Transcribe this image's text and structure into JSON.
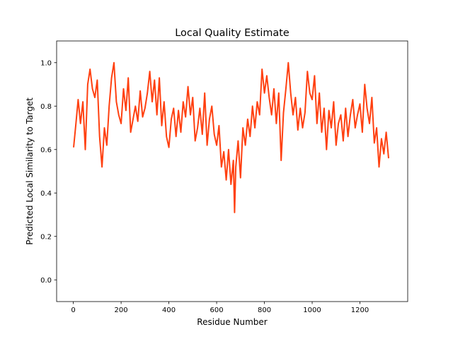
{
  "chart_data": {
    "type": "line",
    "title": "Local Quality Estimate",
    "xlabel": "Residue Number",
    "ylabel": "Predicted Local Similarity to Target",
    "xlim": [
      -70,
      1400
    ],
    "ylim": [
      -0.1,
      1.1
    ],
    "xticks": [
      0,
      200,
      400,
      600,
      800,
      1000,
      1200
    ],
    "yticks": [
      0.0,
      0.2,
      0.4,
      0.6,
      0.8,
      1.0
    ],
    "grid": false,
    "series": [
      {
        "color": "#ff4010",
        "x": [
          1,
          10,
          20,
          30,
          40,
          50,
          60,
          70,
          80,
          90,
          100,
          110,
          120,
          130,
          140,
          150,
          160,
          170,
          180,
          190,
          200,
          210,
          220,
          230,
          240,
          250,
          260,
          270,
          280,
          290,
          300,
          310,
          320,
          330,
          340,
          350,
          360,
          370,
          380,
          390,
          400,
          410,
          420,
          430,
          440,
          450,
          460,
          470,
          480,
          490,
          500,
          510,
          520,
          530,
          540,
          550,
          560,
          570,
          580,
          590,
          600,
          610,
          620,
          630,
          640,
          650,
          660,
          670,
          675,
          680,
          690,
          700,
          710,
          720,
          730,
          740,
          750,
          760,
          770,
          780,
          790,
          800,
          810,
          820,
          830,
          840,
          850,
          860,
          870,
          880,
          890,
          900,
          910,
          920,
          930,
          940,
          950,
          960,
          970,
          980,
          990,
          1000,
          1010,
          1020,
          1030,
          1040,
          1050,
          1060,
          1070,
          1080,
          1090,
          1100,
          1110,
          1120,
          1130,
          1140,
          1150,
          1160,
          1170,
          1180,
          1190,
          1200,
          1210,
          1220,
          1230,
          1240,
          1250,
          1260,
          1270,
          1280,
          1290,
          1300,
          1310,
          1320
        ],
        "y": [
          0.61,
          0.71,
          0.83,
          0.72,
          0.82,
          0.6,
          0.9,
          0.97,
          0.88,
          0.84,
          0.92,
          0.66,
          0.52,
          0.7,
          0.62,
          0.8,
          0.93,
          1.0,
          0.82,
          0.76,
          0.72,
          0.88,
          0.78,
          0.93,
          0.68,
          0.74,
          0.8,
          0.73,
          0.87,
          0.75,
          0.79,
          0.86,
          0.96,
          0.82,
          0.92,
          0.76,
          0.93,
          0.71,
          0.82,
          0.66,
          0.61,
          0.74,
          0.79,
          0.66,
          0.78,
          0.68,
          0.82,
          0.75,
          0.89,
          0.76,
          0.84,
          0.64,
          0.7,
          0.79,
          0.67,
          0.86,
          0.62,
          0.74,
          0.8,
          0.67,
          0.62,
          0.71,
          0.52,
          0.59,
          0.46,
          0.6,
          0.44,
          0.55,
          0.31,
          0.52,
          0.64,
          0.47,
          0.7,
          0.62,
          0.74,
          0.66,
          0.8,
          0.7,
          0.82,
          0.76,
          0.97,
          0.86,
          0.94,
          0.84,
          0.76,
          0.88,
          0.72,
          0.86,
          0.55,
          0.77,
          0.88,
          1.0,
          0.86,
          0.76,
          0.84,
          0.69,
          0.79,
          0.7,
          0.77,
          0.96,
          0.86,
          0.83,
          0.94,
          0.72,
          0.86,
          0.68,
          0.79,
          0.6,
          0.78,
          0.7,
          0.82,
          0.62,
          0.72,
          0.76,
          0.64,
          0.79,
          0.66,
          0.76,
          0.83,
          0.7,
          0.76,
          0.81,
          0.68,
          0.9,
          0.79,
          0.72,
          0.84,
          0.63,
          0.7,
          0.52,
          0.65,
          0.58,
          0.68,
          0.56
        ]
      }
    ]
  }
}
